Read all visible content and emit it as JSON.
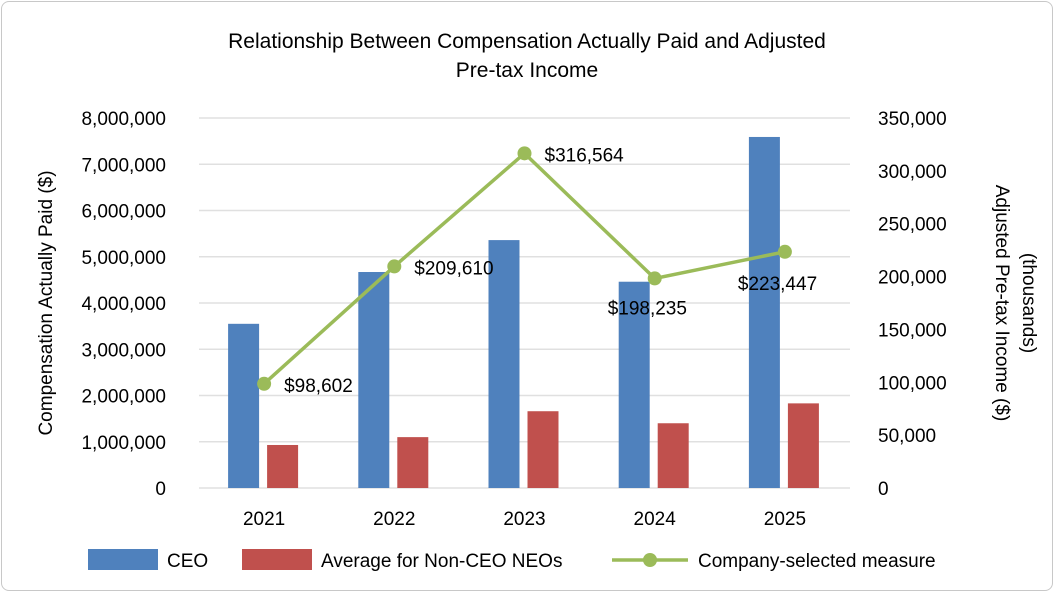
{
  "chart_data": {
    "type": "bar",
    "title": "Relationship Between Compensation Actually Paid and Adjusted Pre-tax Income",
    "title_lines": [
      "Relationship Between Compensation Actually Paid and Adjusted",
      "Pre-tax Income"
    ],
    "categories": [
      "2021",
      "2022",
      "2023",
      "2024",
      "2025"
    ],
    "ylabel": "Compensation Actually Paid ($)",
    "y2label_lines": [
      "Adjusted Pre-tax Income ($)",
      "(thousands)"
    ],
    "ylim": [
      0,
      8000000
    ],
    "y2lim": [
      0,
      350000
    ],
    "yticks": [
      "0",
      "1,000,000",
      "2,000,000",
      "3,000,000",
      "4,000,000",
      "5,000,000",
      "6,000,000",
      "7,000,000",
      "8,000,000"
    ],
    "y2ticks": [
      "0",
      "50,000",
      "100,000",
      "150,000",
      "200,000",
      "250,000",
      "300,000",
      "350,000"
    ],
    "grid": true,
    "legend_position": "bottom",
    "series": [
      {
        "name": "CEO",
        "type": "bar",
        "axis": "left",
        "color": "#4f81bd",
        "values": [
          3550000,
          4670000,
          5360000,
          4460000,
          7590000
        ]
      },
      {
        "name": "Average for Non-CEO NEOs",
        "type": "bar",
        "axis": "left",
        "color": "#c0504d",
        "values": [
          930000,
          1100000,
          1660000,
          1400000,
          1830000
        ]
      },
      {
        "name": "Company-selected measure",
        "type": "line",
        "axis": "right",
        "color": "#9bbb59",
        "values": [
          98602,
          209610,
          316564,
          198235,
          223447
        ],
        "labels": [
          "$98,602",
          "$209,610",
          "$316,564",
          "$198,235",
          "$223,447"
        ]
      }
    ]
  }
}
